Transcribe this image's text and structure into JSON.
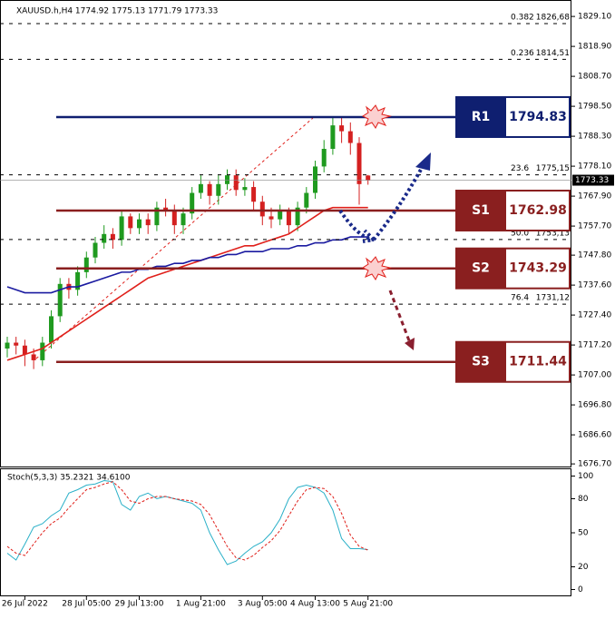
{
  "chart_data": [
    {
      "type": "candlestick",
      "title": "XAUUSD.h,H4  1774.92 1775.13 1771.79 1773.33",
      "categories": [
        null,
        null,
        "26 Jul 2022",
        null,
        null,
        null,
        null,
        null,
        null,
        "28 Jul 05:00",
        null,
        null,
        null,
        null,
        null,
        "29 Jul 13:00",
        null,
        null,
        null,
        null,
        null,
        null,
        "1 Aug 21:00",
        null,
        null,
        null,
        null,
        null,
        null,
        "3 Aug 05:00",
        null,
        null,
        null,
        null,
        null,
        "4 Aug 13:00",
        null,
        null,
        null,
        null,
        null,
        "5 Aug 21:00"
      ],
      "open": [
        1716,
        1718,
        1717,
        1714,
        1712,
        1718,
        1727,
        1738,
        1736,
        1742,
        1747,
        1752,
        1755,
        1753,
        1761,
        1757,
        1760,
        1758,
        1764,
        1763,
        1758,
        1762,
        1769,
        1772,
        1768,
        1772,
        1775,
        1770,
        1771,
        1766,
        1761,
        1760,
        1763,
        1758,
        1764,
        1769,
        1778,
        1784,
        1792,
        1790,
        1786,
        1774.92
      ],
      "high": [
        1720,
        1720,
        1719,
        1716,
        1720,
        1729,
        1740,
        1740,
        1744,
        1749,
        1754,
        1758,
        1757,
        1763,
        1762,
        1762,
        1762,
        1766,
        1767,
        1765,
        1764,
        1771,
        1775,
        1773,
        1775,
        1777,
        1777,
        1774,
        1773,
        1768,
        1764,
        1765,
        1764,
        1766,
        1771,
        1780,
        1787,
        1795,
        1795,
        1793,
        1788,
        1775.13
      ],
      "low": [
        1713,
        1714,
        1710,
        1709,
        1710,
        1716,
        1725,
        1733,
        1734,
        1740,
        1745,
        1750,
        1750,
        1751,
        1755,
        1755,
        1755,
        1756,
        1761,
        1755,
        1755,
        1760,
        1767,
        1765,
        1765,
        1770,
        1768,
        1768,
        1763,
        1758,
        1757,
        1758,
        1755,
        1756,
        1762,
        1767,
        1776,
        1782,
        1786,
        1782,
        1765,
        1771.79
      ],
      "close": [
        1718,
        1717,
        1714,
        1712,
        1718,
        1727,
        1738,
        1736,
        1742,
        1747,
        1752,
        1755,
        1753,
        1761,
        1757,
        1760,
        1758,
        1764,
        1763,
        1758,
        1762,
        1769,
        1772,
        1768,
        1772,
        1775,
        1770,
        1771,
        1766,
        1761,
        1760,
        1763,
        1758,
        1764,
        1769,
        1778,
        1784,
        1792,
        1790,
        1786,
        1772,
        1773.33
      ],
      "up_color": "#1f9a1f",
      "down_color": "#d42020",
      "series": [
        {
          "color": "#e0201b",
          "values": [
            1712,
            1713,
            1714,
            1715,
            1716,
            1718,
            1720,
            1722,
            1724,
            1726,
            1728,
            1730,
            1732,
            1734,
            1736,
            1738,
            1740,
            1741,
            1742,
            1743,
            1744,
            1745,
            1746,
            1747,
            1748,
            1749,
            1750,
            1751,
            1751,
            1752,
            1753,
            1754,
            1755,
            1757,
            1759,
            1761,
            1763,
            1764,
            1764,
            1764,
            1764,
            1764
          ]
        },
        {
          "color": "#1a1aa0",
          "values": [
            1737,
            1736,
            1735,
            1735,
            1735,
            1735,
            1736,
            1737,
            1737,
            1738,
            1739,
            1740,
            1741,
            1742,
            1742,
            1743,
            1743,
            1744,
            1744,
            1745,
            1745,
            1746,
            1746,
            1747,
            1747,
            1748,
            1748,
            1749,
            1749,
            1749,
            1750,
            1750,
            1750,
            1751,
            1751,
            1752,
            1752,
            1753,
            1753,
            1754,
            1754,
            1754
          ]
        }
      ],
      "levels": [
        {
          "name": "R1",
          "value": 1794.83,
          "color": "#0f1f70"
        },
        {
          "name": "S1",
          "value": 1762.98,
          "color": "#8a1f1f"
        },
        {
          "name": "S2",
          "value": 1743.29,
          "color": "#8a1f1f"
        },
        {
          "name": "S3",
          "value": 1711.44,
          "color": "#8a1f1f"
        }
      ],
      "fib": [
        {
          "name": "0.382",
          "value": 1826.68,
          "value_label": "1826,68"
        },
        {
          "name": "0.236",
          "value": 1814.51,
          "value_label": "1814,51"
        },
        {
          "name": "23.6",
          "value": 1775.15,
          "value_label": "1775,15"
        },
        {
          "name": "50.0",
          "value": 1753.13,
          "value_label": "1753,13"
        },
        {
          "name": "76.4",
          "value": 1731.12,
          "value_label": "1731,12"
        }
      ],
      "current_price": 1773.33,
      "ylim": [
        1675.5,
        1834.7
      ],
      "yticks": [
        {
          "value": 1829.1,
          "label": "1829.10"
        },
        {
          "value": 1818.9,
          "label": "1818.90"
        },
        {
          "value": 1808.7,
          "label": "1808.70"
        },
        {
          "value": 1798.5,
          "label": "1798.50"
        },
        {
          "value": 1788.3,
          "label": "1788.30"
        },
        {
          "value": 1778.1,
          "label": "1778.10"
        },
        {
          "value": 1767.9,
          "label": "1767.90"
        },
        {
          "value": 1757.7,
          "label": "1757.70"
        },
        {
          "value": 1747.8,
          "label": "1747.80"
        },
        {
          "value": 1737.6,
          "label": "1737.60"
        },
        {
          "value": 1727.4,
          "label": "1727.40"
        },
        {
          "value": 1717.2,
          "label": "1717.20"
        },
        {
          "value": 1707,
          "label": "1707.00"
        },
        {
          "value": 1696.8,
          "label": "1696.80"
        },
        {
          "value": 1686.6,
          "label": "1686.60"
        },
        {
          "value": 1676.7,
          "label": "1676.70"
        }
      ]
    },
    {
      "type": "line",
      "title": "Stoch(5,3,3) 35.2321 34.6100",
      "series": [
        {
          "color": "#2ab0c8",
          "dashed": false,
          "values": [
            32,
            26,
            40,
            55,
            58,
            65,
            70,
            85,
            88,
            92,
            93,
            96,
            95,
            75,
            70,
            82,
            85,
            80,
            82,
            80,
            78,
            76,
            70,
            50,
            35,
            22,
            25,
            32,
            38,
            42,
            50,
            62,
            80,
            90,
            92,
            90,
            85,
            70,
            45,
            36,
            36,
            35.2321
          ]
        },
        {
          "color": "#e0201b",
          "dashed": true,
          "values": [
            38,
            32,
            30,
            40,
            50,
            58,
            63,
            72,
            80,
            88,
            90,
            93,
            95,
            88,
            78,
            76,
            80,
            82,
            82,
            80,
            79,
            78,
            75,
            66,
            52,
            38,
            28,
            26,
            30,
            37,
            43,
            52,
            65,
            78,
            88,
            90,
            89,
            82,
            67,
            48,
            38,
            34.61
          ]
        }
      ],
      "ylim": [
        -6,
        106
      ],
      "yticks": [
        100,
        80,
        50,
        20,
        0
      ]
    }
  ]
}
